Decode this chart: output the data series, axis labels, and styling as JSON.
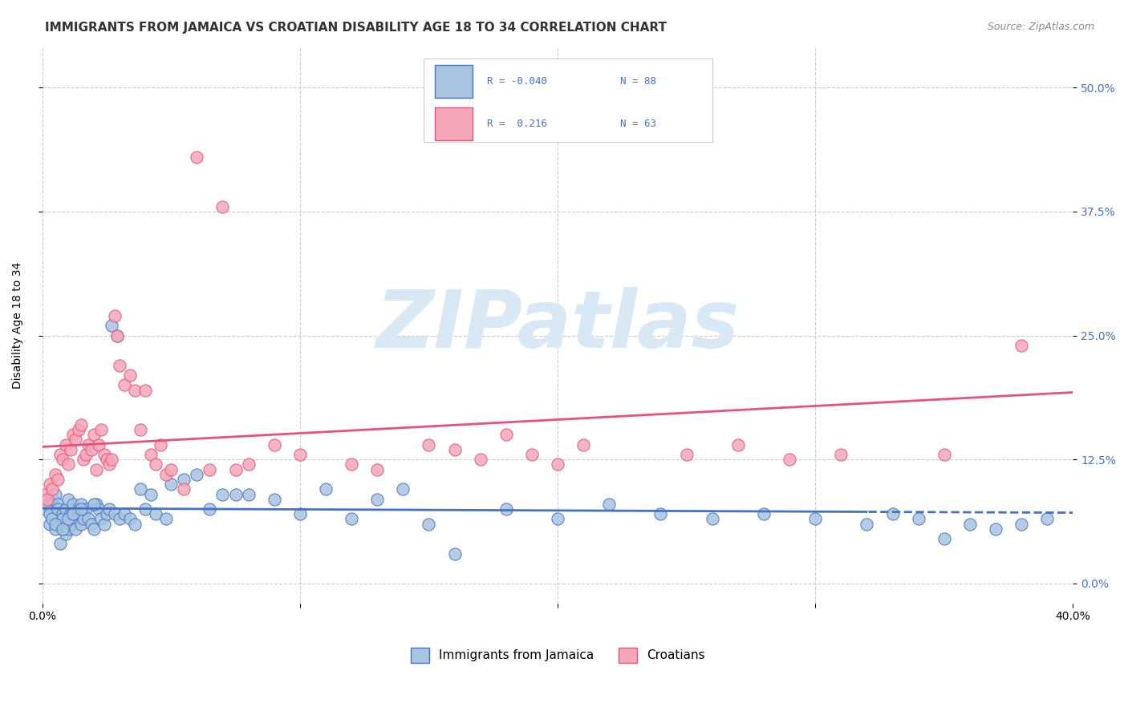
{
  "title": "IMMIGRANTS FROM JAMAICA VS CROATIAN DISABILITY AGE 18 TO 34 CORRELATION CHART",
  "source": "Source: ZipAtlas.com",
  "ylabel": "Disability Age 18 to 34",
  "ytick_values": [
    0,
    0.125,
    0.25,
    0.375,
    0.5
  ],
  "xlim": [
    0.0,
    0.4
  ],
  "ylim": [
    -0.02,
    0.54
  ],
  "legend1_label": "Immigrants from Jamaica",
  "legend2_label": "Croatians",
  "R_jamaica": -0.04,
  "N_jamaica": 88,
  "R_croatian": 0.216,
  "N_croatian": 63,
  "color_jamaica": "#a8c4e0",
  "color_croatian": "#f4a7b9",
  "line_color_jamaica": "#4472c4",
  "line_color_croatian": "#e8517a",
  "watermark_color": "#d8e8f5",
  "background_color": "#ffffff",
  "grid_color": "#cccccc",
  "title_fontsize": 11,
  "axis_label_fontsize": 10,
  "tick_fontsize": 10,
  "legend_fontsize": 11,
  "source_fontsize": 9,
  "jamaica_x": [
    0.001,
    0.002,
    0.003,
    0.003,
    0.004,
    0.004,
    0.005,
    0.005,
    0.006,
    0.006,
    0.007,
    0.007,
    0.008,
    0.008,
    0.009,
    0.009,
    0.01,
    0.01,
    0.011,
    0.011,
    0.012,
    0.012,
    0.013,
    0.013,
    0.014,
    0.014,
    0.015,
    0.015,
    0.016,
    0.016,
    0.017,
    0.018,
    0.019,
    0.02,
    0.021,
    0.022,
    0.023,
    0.024,
    0.025,
    0.026,
    0.027,
    0.028,
    0.029,
    0.03,
    0.032,
    0.034,
    0.036,
    0.038,
    0.04,
    0.042,
    0.044,
    0.048,
    0.05,
    0.055,
    0.06,
    0.065,
    0.07,
    0.075,
    0.08,
    0.09,
    0.1,
    0.11,
    0.12,
    0.13,
    0.14,
    0.15,
    0.16,
    0.18,
    0.2,
    0.22,
    0.24,
    0.26,
    0.28,
    0.3,
    0.32,
    0.33,
    0.34,
    0.35,
    0.36,
    0.37,
    0.38,
    0.39,
    0.005,
    0.008,
    0.01,
    0.012,
    0.015,
    0.02
  ],
  "jamaica_y": [
    0.075,
    0.08,
    0.06,
    0.07,
    0.085,
    0.065,
    0.09,
    0.055,
    0.08,
    0.075,
    0.04,
    0.06,
    0.07,
    0.065,
    0.075,
    0.05,
    0.055,
    0.085,
    0.06,
    0.07,
    0.075,
    0.08,
    0.065,
    0.055,
    0.07,
    0.075,
    0.06,
    0.08,
    0.07,
    0.065,
    0.075,
    0.065,
    0.06,
    0.055,
    0.08,
    0.075,
    0.065,
    0.06,
    0.07,
    0.075,
    0.26,
    0.07,
    0.25,
    0.065,
    0.07,
    0.065,
    0.06,
    0.095,
    0.075,
    0.09,
    0.07,
    0.065,
    0.1,
    0.105,
    0.11,
    0.075,
    0.09,
    0.09,
    0.09,
    0.085,
    0.07,
    0.095,
    0.065,
    0.085,
    0.095,
    0.06,
    0.03,
    0.075,
    0.065,
    0.08,
    0.07,
    0.065,
    0.07,
    0.065,
    0.06,
    0.07,
    0.065,
    0.045,
    0.06,
    0.055,
    0.06,
    0.065,
    0.06,
    0.055,
    0.065,
    0.07,
    0.075,
    0.08
  ],
  "croatian_x": [
    0.001,
    0.002,
    0.003,
    0.004,
    0.005,
    0.006,
    0.007,
    0.008,
    0.009,
    0.01,
    0.011,
    0.012,
    0.013,
    0.014,
    0.015,
    0.016,
    0.017,
    0.018,
    0.019,
    0.02,
    0.021,
    0.022,
    0.023,
    0.024,
    0.025,
    0.026,
    0.027,
    0.028,
    0.029,
    0.03,
    0.032,
    0.034,
    0.036,
    0.038,
    0.04,
    0.042,
    0.044,
    0.046,
    0.048,
    0.05,
    0.055,
    0.06,
    0.065,
    0.07,
    0.075,
    0.08,
    0.09,
    0.1,
    0.12,
    0.13,
    0.15,
    0.16,
    0.17,
    0.18,
    0.19,
    0.2,
    0.21,
    0.25,
    0.27,
    0.29,
    0.31,
    0.35,
    0.38
  ],
  "croatian_y": [
    0.09,
    0.085,
    0.1,
    0.095,
    0.11,
    0.105,
    0.13,
    0.125,
    0.14,
    0.12,
    0.135,
    0.15,
    0.145,
    0.155,
    0.16,
    0.125,
    0.13,
    0.14,
    0.135,
    0.15,
    0.115,
    0.14,
    0.155,
    0.13,
    0.125,
    0.12,
    0.125,
    0.27,
    0.25,
    0.22,
    0.2,
    0.21,
    0.195,
    0.155,
    0.195,
    0.13,
    0.12,
    0.14,
    0.11,
    0.115,
    0.095,
    0.43,
    0.115,
    0.38,
    0.115,
    0.12,
    0.14,
    0.13,
    0.12,
    0.115,
    0.14,
    0.135,
    0.125,
    0.15,
    0.13,
    0.12,
    0.14,
    0.13,
    0.14,
    0.125,
    0.13,
    0.13,
    0.24
  ]
}
